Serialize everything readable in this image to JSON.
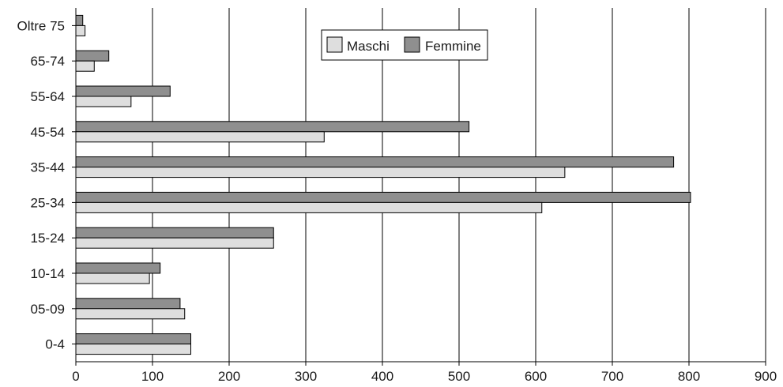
{
  "chart_data": {
    "type": "bar",
    "orientation": "horizontal",
    "categories": [
      "0-4",
      "05-09",
      "10-14",
      "15-24",
      "25-34",
      "35-44",
      "45-54",
      "55-64",
      "65-74",
      "Oltre 75"
    ],
    "series": [
      {
        "name": "Maschi",
        "color": "#dedede",
        "values": [
          150,
          142,
          96,
          258,
          608,
          638,
          324,
          72,
          24,
          12
        ]
      },
      {
        "name": "Femmine",
        "color": "#8f8f8f",
        "values": [
          150,
          136,
          110,
          258,
          802,
          780,
          513,
          123,
          43,
          9
        ]
      }
    ],
    "xlim": [
      0,
      900
    ],
    "xticks": [
      "0",
      "100",
      "200",
      "300",
      "400",
      "500",
      "600",
      "700",
      "800",
      "900"
    ],
    "grid": "vertical",
    "legend_position": "top-center"
  }
}
